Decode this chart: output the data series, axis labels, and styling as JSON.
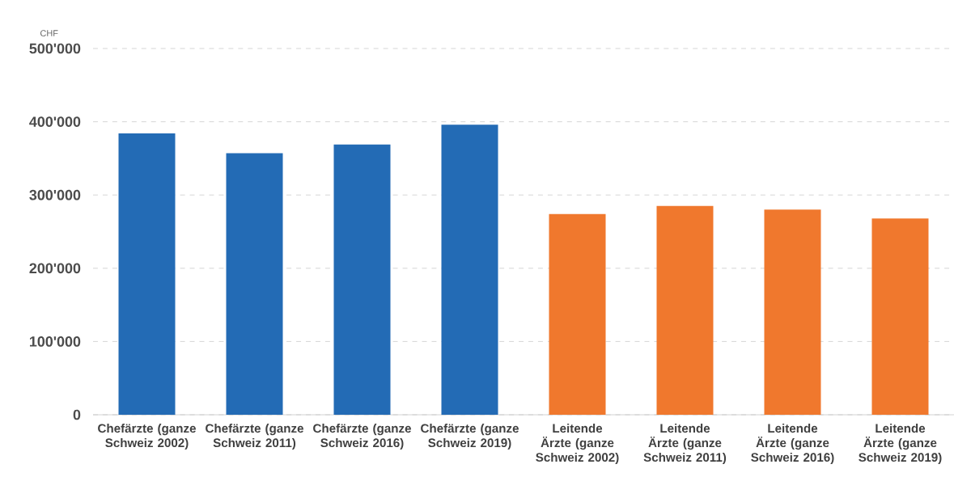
{
  "chart_data": {
    "type": "bar",
    "ylabel": "CHF",
    "categories": [
      "Chefärzte (ganze Schweiz 2002)",
      "Chefärzte (ganze Schweiz 2011)",
      "Chefärzte (ganze Schweiz 2016)",
      "Chefärzte (ganze Schweiz 2019)",
      "Leitende Ärzte (ganze Schweiz 2002)",
      "Leitende Ärzte (ganze Schweiz 2011)",
      "Leitende Ärzte (ganze Schweiz 2016)",
      "Leitende Ärzte (ganze Schweiz 2019)"
    ],
    "values": [
      384000,
      357000,
      369000,
      396000,
      274000,
      285000,
      280000,
      268000
    ],
    "colors": [
      "#236bb5",
      "#236bb5",
      "#236bb5",
      "#236bb5",
      "#f0782d",
      "#f0782d",
      "#f0782d",
      "#f0782d"
    ],
    "ylim": [
      0,
      500000
    ],
    "yticks": [
      {
        "value": 0,
        "label": "0"
      },
      {
        "value": 100000,
        "label": "100'000"
      },
      {
        "value": 200000,
        "label": "200'000"
      },
      {
        "value": 300000,
        "label": "300'000"
      },
      {
        "value": 400000,
        "label": "400'000"
      },
      {
        "value": 500000,
        "label": "500'000"
      }
    ],
    "grid": "y"
  }
}
